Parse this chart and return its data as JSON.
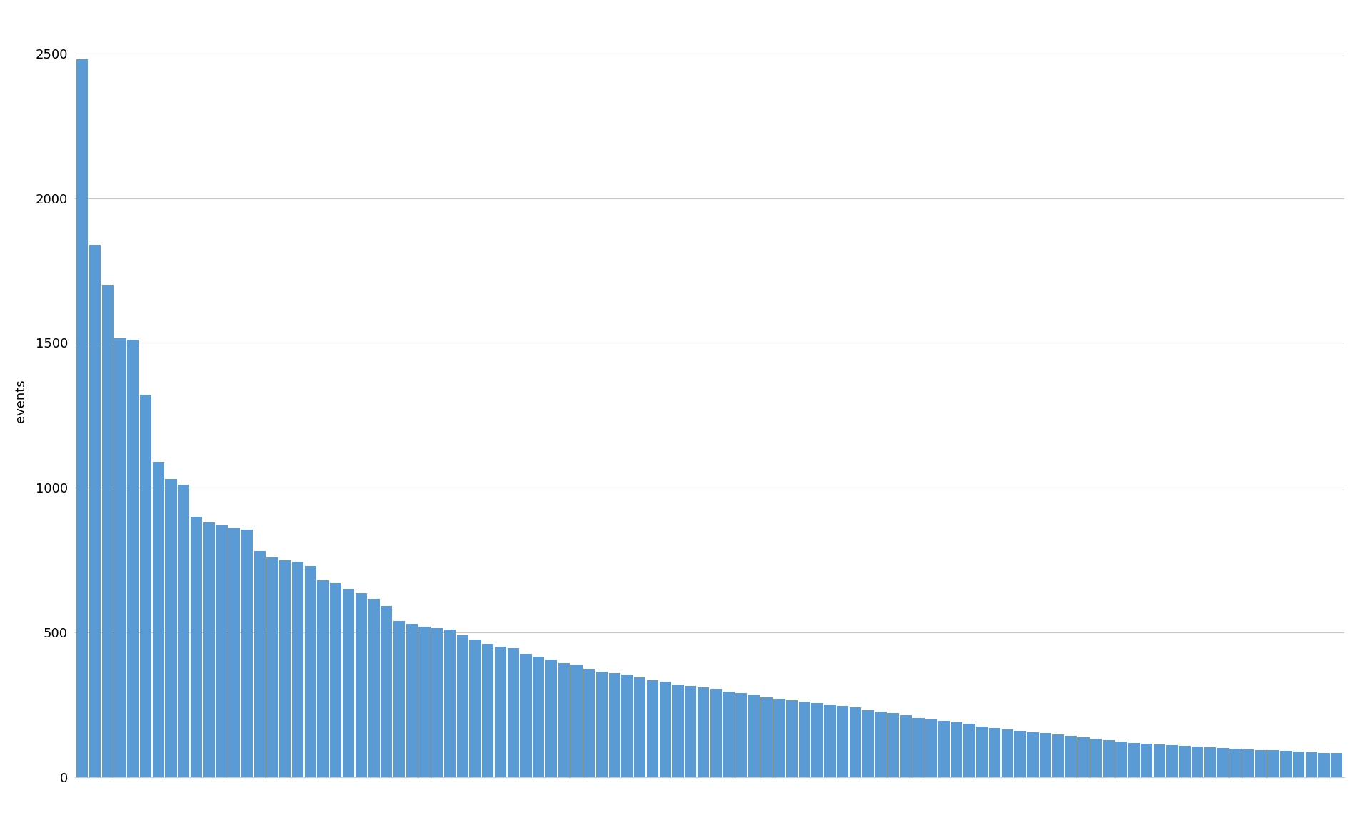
{
  "values": [
    2480,
    1840,
    1700,
    1515,
    1510,
    1320,
    1090,
    1030,
    1010,
    900,
    880,
    870,
    860,
    855,
    780,
    760,
    750,
    745,
    730,
    680,
    670,
    650,
    635,
    615,
    590,
    540,
    530,
    520,
    515,
    510,
    490,
    475,
    460,
    450,
    445,
    425,
    415,
    405,
    395,
    390,
    375,
    365,
    360,
    355,
    345,
    335,
    330,
    320,
    315,
    310,
    305,
    295,
    290,
    285,
    275,
    270,
    265,
    260,
    255,
    250,
    245,
    240,
    230,
    225,
    220,
    215,
    205,
    200,
    195,
    190,
    185,
    175,
    170,
    165,
    160,
    155,
    152,
    148,
    143,
    138,
    133,
    128,
    122,
    118,
    115,
    112,
    110,
    108,
    106,
    103,
    100,
    98,
    96,
    94,
    92,
    90,
    88,
    86,
    84,
    82
  ],
  "bar_color": "#5B9BD5",
  "background_color": "#ffffff",
  "ylabel": "events",
  "ylim": [
    0,
    2600
  ],
  "yticks": [
    0,
    500,
    1000,
    1500,
    2000,
    2500
  ],
  "grid_color": "#c8c8c8",
  "ylabel_fontsize": 13,
  "tick_fontsize": 13,
  "bar_width": 0.92,
  "figsize": [
    19.02,
    11.46
  ],
  "dpi": 100
}
